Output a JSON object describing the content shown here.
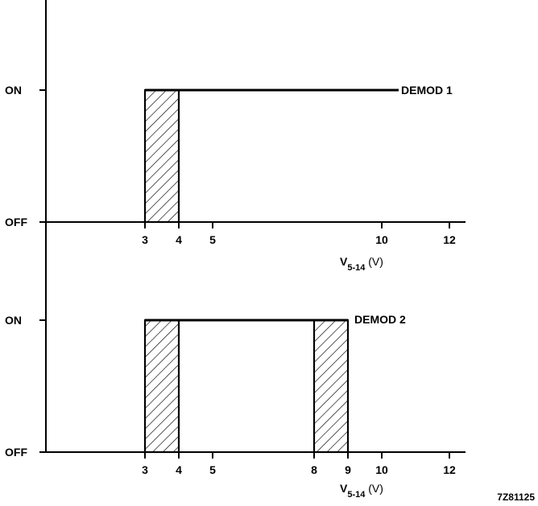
{
  "figure_code": "7Z81125",
  "chart_data": [
    {
      "type": "line",
      "series": [
        {
          "name": "DEMOD 1",
          "segments": [
            {
              "from": 3,
              "to": 10.5,
              "state": "ON"
            }
          ],
          "hatched_regions": [
            [
              3,
              4
            ]
          ]
        }
      ],
      "y_states": [
        "OFF",
        "ON"
      ],
      "x_ticks": [
        3,
        4,
        5,
        10,
        12
      ],
      "xlim": [
        0,
        12.5
      ],
      "xlabel": {
        "main": "V",
        "sub": "5-14",
        "unit": "(V)"
      }
    },
    {
      "type": "line",
      "series": [
        {
          "name": "DEMOD 2",
          "segments": [
            {
              "from": 3,
              "to": 9,
              "state": "ON"
            }
          ],
          "hatched_regions": [
            [
              3,
              4
            ],
            [
              8,
              9
            ]
          ]
        }
      ],
      "y_states": [
        "OFF",
        "ON"
      ],
      "x_ticks": [
        3,
        4,
        5,
        8,
        9,
        10,
        12
      ],
      "xlim": [
        0,
        12.5
      ],
      "xlabel": {
        "main": "V",
        "sub": "5-14",
        "unit": "(V)"
      }
    }
  ]
}
